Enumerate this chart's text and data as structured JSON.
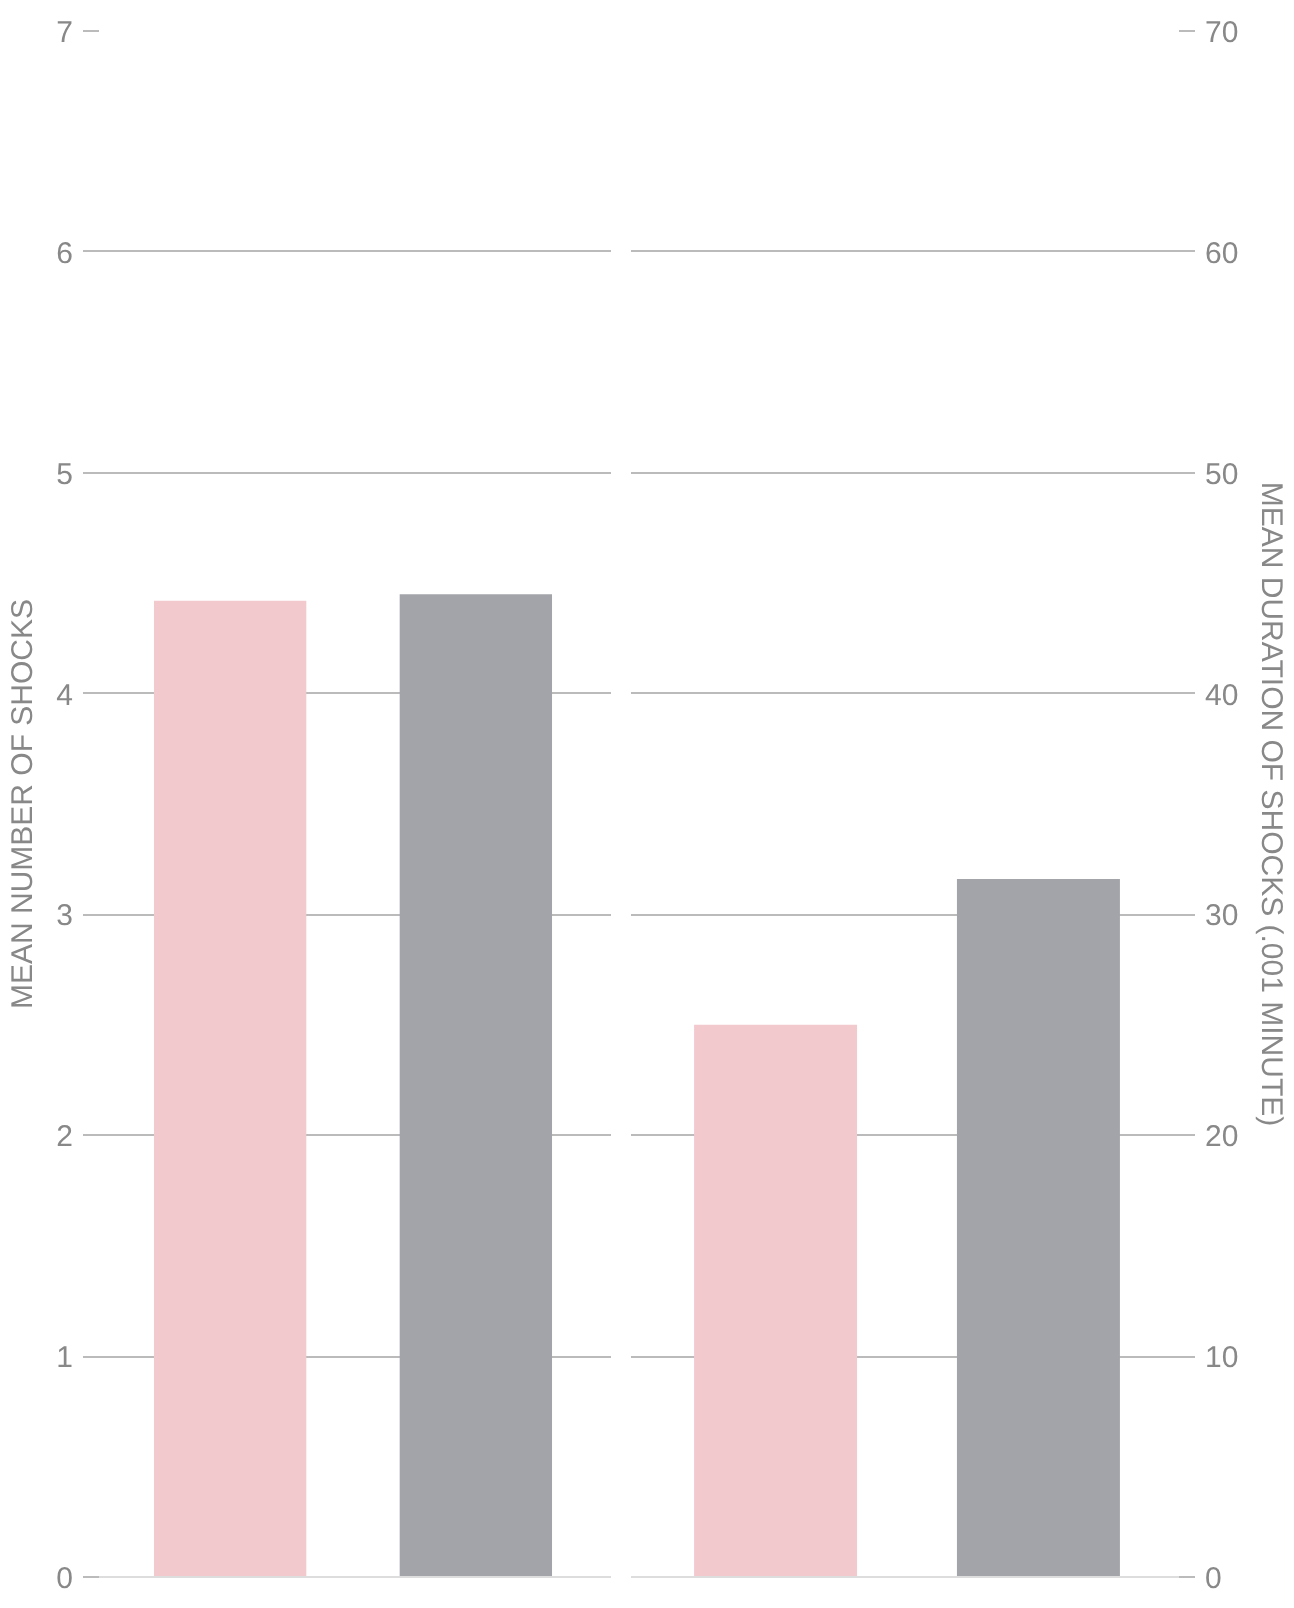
{
  "chart_data": [
    {
      "type": "bar",
      "ylabel": "MEAN NUMBER OF SHOCKS",
      "categories": [
        null,
        null
      ],
      "values": [
        4.42,
        4.45
      ],
      "colors": [
        "#f2c9cd",
        "#a3a4aa"
      ],
      "ylim": [
        0,
        7
      ],
      "yticks": [
        0,
        1,
        2,
        3,
        4,
        5,
        6,
        7
      ],
      "grid": true
    },
    {
      "type": "bar",
      "ylabel": "MEAN DURATION OF SHOCKS (.001 MINUTE)",
      "categories": [
        null,
        null
      ],
      "values": [
        25,
        31.6
      ],
      "colors": [
        "#f2c9cd",
        "#a3a4aa"
      ],
      "ylim": [
        0,
        70
      ],
      "yticks": [
        0,
        10,
        20,
        30,
        40,
        50,
        60,
        70
      ],
      "grid": true
    }
  ]
}
